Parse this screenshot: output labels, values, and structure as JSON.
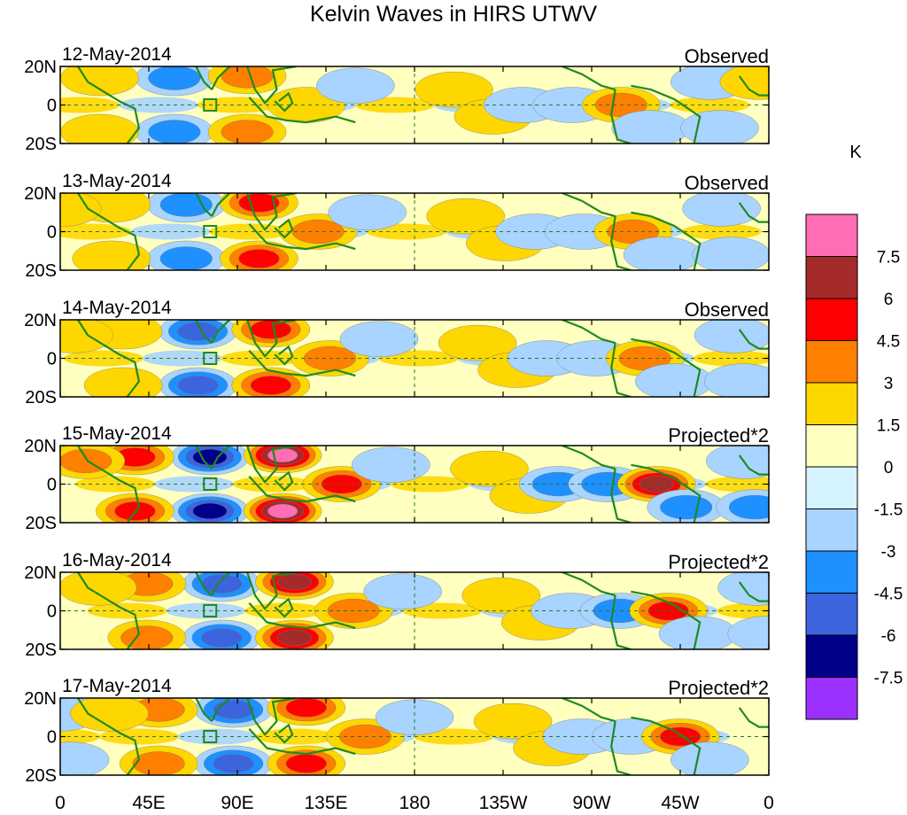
{
  "chart_data": {
    "type": "map_panels",
    "title": "Kelvin Waves in HIRS UTWV",
    "lon_range": [
      0,
      360
    ],
    "lat_range": [
      -20,
      20
    ],
    "x_ticks": [
      "0",
      "45E",
      "90E",
      "135E",
      "180",
      "135W",
      "90W",
      "45W",
      "0"
    ],
    "y_ticks": [
      "20N",
      "0",
      "20S"
    ],
    "colorbar": {
      "units": "K",
      "levels": [
        "7.5",
        "6",
        "4.5",
        "3",
        "1.5",
        "0",
        "-1.5",
        "-3",
        "-4.5",
        "-6",
        "-7.5"
      ],
      "colors": [
        "#ff6eb4",
        "#a52a2a",
        "#ff0000",
        "#ff7f00",
        "#ffd700",
        "#ffffc0",
        "#d6f4ff",
        "#a8d4ff",
        "#1e90ff",
        "#3c64dc",
        "#00008b",
        "#9b30ff"
      ]
    },
    "panels": [
      {
        "date": "12-May-2014",
        "label": "Observed",
        "scale": 0.55
      },
      {
        "date": "13-May-2014",
        "label": "Observed",
        "scale": 0.6
      },
      {
        "date": "14-May-2014",
        "label": "Observed",
        "scale": 0.65
      },
      {
        "date": "15-May-2014",
        "label": "Projected*2",
        "scale": 1.0
      },
      {
        "date": "16-May-2014",
        "label": "Projected*2",
        "scale": 0.85
      },
      {
        "date": "17-May-2014",
        "label": "Projected*2",
        "scale": 0.7
      }
    ],
    "features": [
      {
        "lon": 58,
        "lat": 14,
        "v": -7
      },
      {
        "lon": 58,
        "lat": -14,
        "v": -7
      },
      {
        "lon": 20,
        "lat": 14,
        "v": 4.5
      },
      {
        "lon": 20,
        "lat": -14,
        "v": 4.5
      },
      {
        "lon": 95,
        "lat": 15,
        "v": 8
      },
      {
        "lon": 95,
        "lat": -14,
        "v": 8
      },
      {
        "lon": 125,
        "lat": 0,
        "v": 5
      },
      {
        "lon": 150,
        "lat": 10,
        "v": -2.5
      },
      {
        "lon": 200,
        "lat": 8,
        "v": 2
      },
      {
        "lon": 220,
        "lat": -6,
        "v": 2
      },
      {
        "lon": 235,
        "lat": 0,
        "v": -3
      },
      {
        "lon": 260,
        "lat": 0,
        "v": -4
      },
      {
        "lon": 285,
        "lat": 0,
        "v": 6.5
      },
      {
        "lon": 300,
        "lat": -12,
        "v": -3
      },
      {
        "lon": 335,
        "lat": -12,
        "v": -3.5
      },
      {
        "lon": 330,
        "lat": 12,
        "v": -2.5
      },
      {
        "lon": 355,
        "lat": 12,
        "v": 3
      }
    ]
  }
}
